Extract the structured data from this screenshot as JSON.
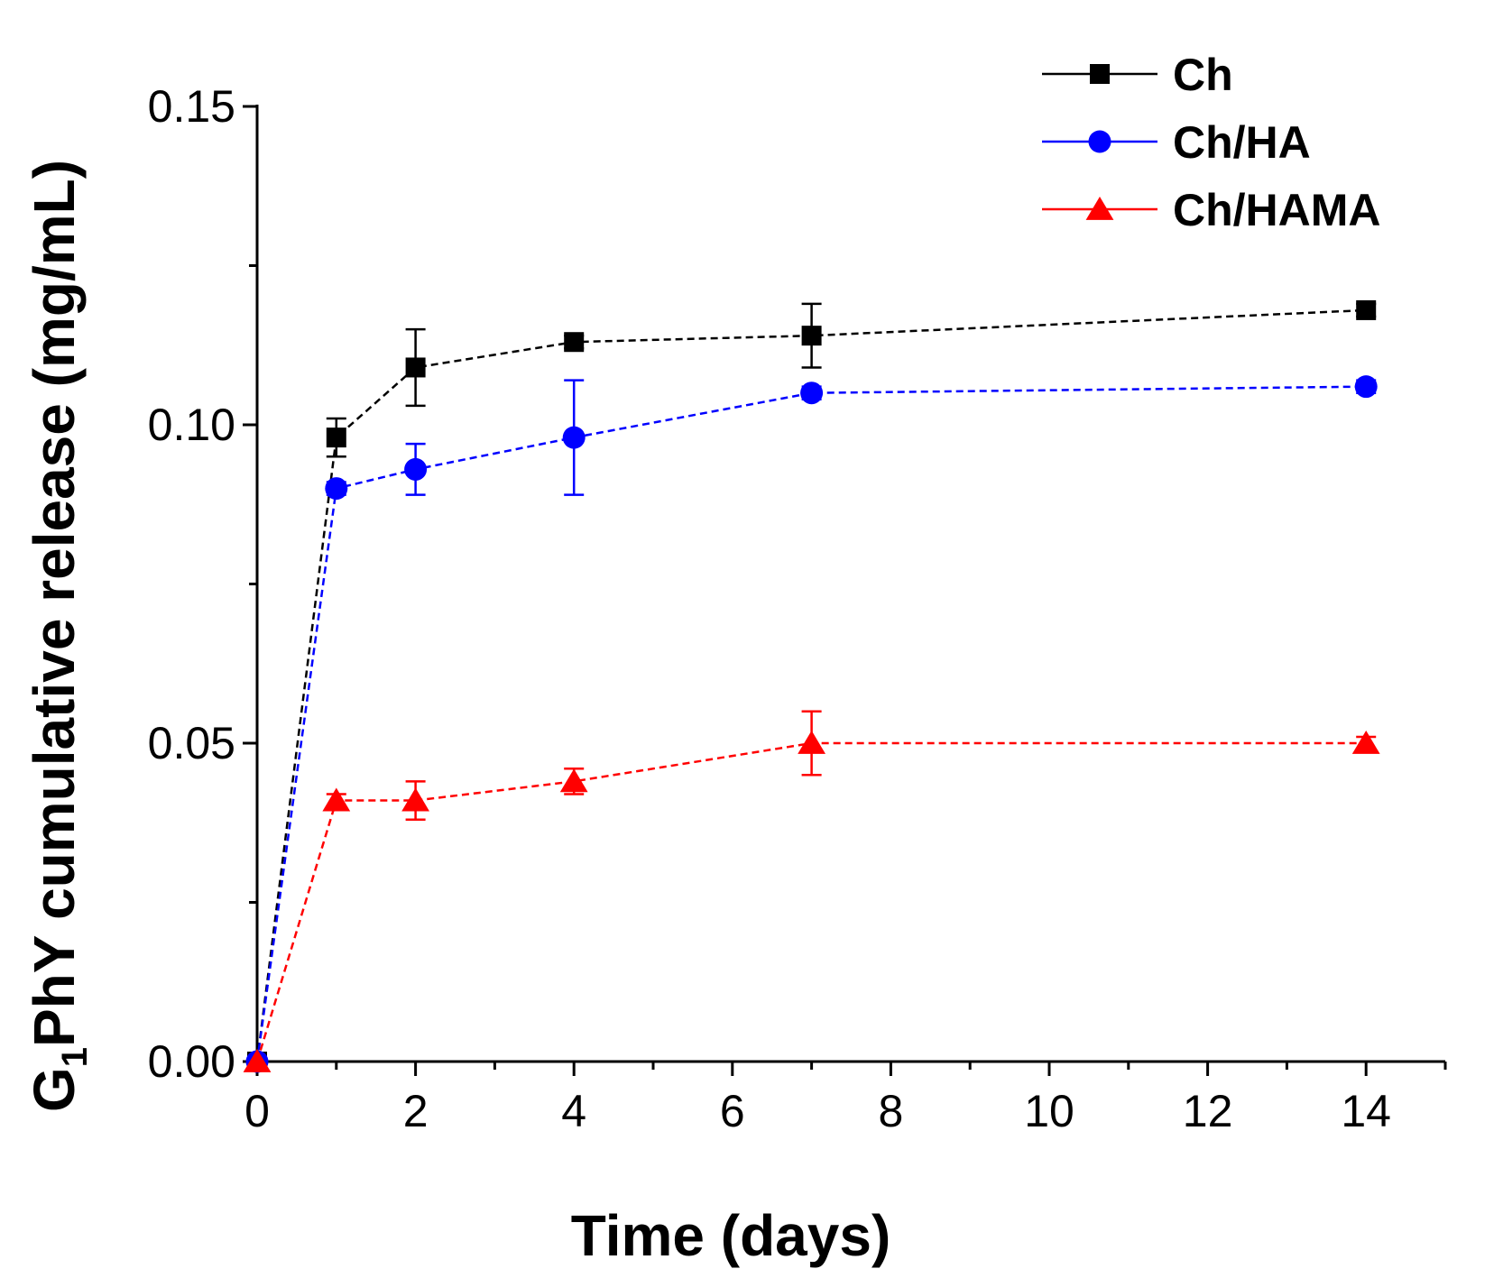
{
  "chart_data": {
    "type": "line",
    "xlabel": "Time (days)",
    "ylabel_main": "G",
    "ylabel_sub": "1",
    "ylabel_rest": "PhY cumulative release (mg/mL)",
    "xlim": [
      0,
      15
    ],
    "ylim": [
      0,
      0.15
    ],
    "xticks": [
      "0",
      "2",
      "4",
      "6",
      "8",
      "10",
      "12",
      "14"
    ],
    "yticks": [
      "0.00",
      "0.05",
      "0.10",
      "0.15"
    ],
    "grid": false,
    "legend_position": "top-right",
    "x": [
      0,
      1,
      2,
      4,
      7,
      14
    ],
    "series": [
      {
        "name": "Ch",
        "color": "#000000",
        "marker": "square",
        "values": [
          0,
          0.098,
          0.109,
          0.113,
          0.114,
          0.118
        ],
        "errors": [
          0,
          0.003,
          0.006,
          0.001,
          0.005,
          0.001
        ]
      },
      {
        "name": "Ch/HA",
        "color": "#0000ff",
        "marker": "circle",
        "values": [
          0,
          0.09,
          0.093,
          0.098,
          0.105,
          0.106
        ],
        "errors": [
          0,
          0.001,
          0.004,
          0.009,
          0.001,
          0.001
        ]
      },
      {
        "name": "Ch/HAMA",
        "color": "#ff0000",
        "marker": "triangle",
        "values": [
          0,
          0.041,
          0.041,
          0.044,
          0.05,
          0.05
        ],
        "errors": [
          0,
          0.001,
          0.003,
          0.002,
          0.005,
          0.001
        ]
      }
    ]
  }
}
